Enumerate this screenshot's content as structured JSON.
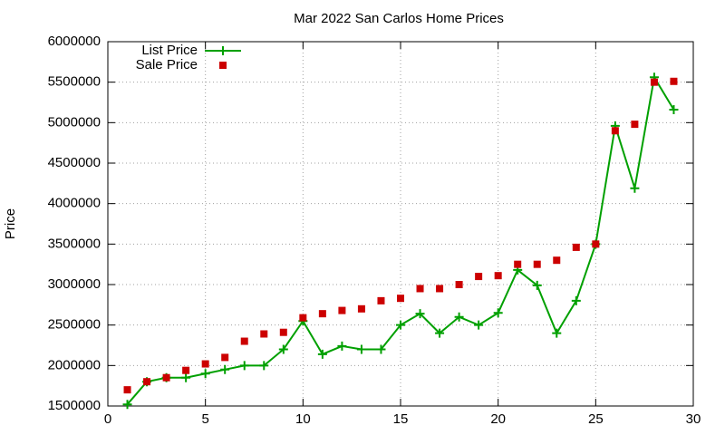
{
  "chart_data": {
    "type": "line",
    "title": "Mar 2022 San Carlos Home Prices",
    "y_label": "Price",
    "x": [
      1,
      2,
      3,
      4,
      5,
      6,
      7,
      8,
      9,
      10,
      11,
      12,
      13,
      14,
      15,
      16,
      17,
      18,
      19,
      20,
      21,
      22,
      23,
      24,
      25,
      26,
      27,
      28,
      29
    ],
    "series": [
      {
        "name": "List Price",
        "color": "#00a000",
        "line": true,
        "marker": "plus",
        "values": [
          1520000,
          1800000,
          1850000,
          1850000,
          1900000,
          1950000,
          2000000,
          2000000,
          2200000,
          2550000,
          2140000,
          2240000,
          2200000,
          2200000,
          2500000,
          2640000,
          2400000,
          2600000,
          2500000,
          2650000,
          3180000,
          2990000,
          2400000,
          2800000,
          3500000,
          4960000,
          4190000,
          5560000,
          5160000
        ]
      },
      {
        "name": "Sale Price",
        "color": "#cc0000",
        "line": false,
        "marker": "square",
        "values": [
          1700000,
          1800000,
          1850000,
          1940000,
          2020000,
          2100000,
          2300000,
          2390000,
          2410000,
          2590000,
          2640000,
          2680000,
          2700000,
          2800000,
          2830000,
          2950000,
          2950000,
          3000000,
          3100000,
          3110000,
          3250000,
          3250000,
          3300000,
          3460000,
          3500000,
          4900000,
          4980000,
          5500000,
          5510000
        ]
      }
    ],
    "xlim": [
      0,
      30
    ],
    "xticks": [
      0,
      5,
      10,
      15,
      20,
      25,
      30
    ],
    "ylim": [
      1500000,
      6000000
    ],
    "yticks": [
      1500000,
      2000000,
      2500000,
      3000000,
      3500000,
      4000000,
      4500000,
      5000000,
      5500000,
      6000000
    ],
    "grid": true,
    "legend": "top-left"
  }
}
